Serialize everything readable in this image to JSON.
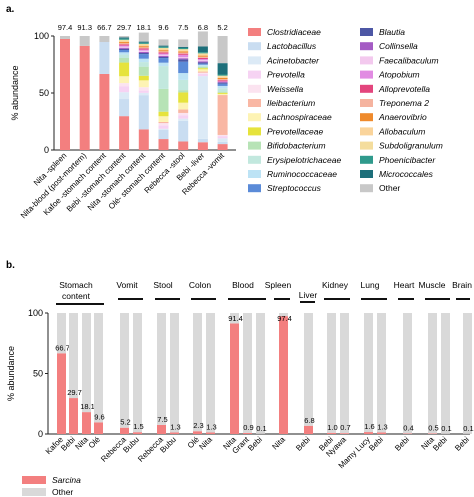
{
  "panel_a_tag": "a.",
  "panel_b_tag": "b.",
  "chart_data": [
    {
      "type": "bar",
      "stacked": true,
      "ylabel": "% abundance",
      "ylim": [
        0,
        100
      ],
      "yticks": [
        0,
        50,
        100
      ],
      "categories": [
        "Nita -spleen",
        "Nita-blood (post-mortem)",
        "Kafoe -stomach content",
        "Bebi -stomach content",
        "Nita -stomach content",
        "Olé- stomach content",
        "Rebecca -stool",
        "Bebi -liver",
        "Rebecca -vomit"
      ],
      "top_labels": [
        "97.4",
        "91.3",
        "66.7",
        "29.7",
        "18.1",
        "9.6",
        "7.5",
        "6.8",
        "5.2"
      ],
      "series": [
        {
          "name": "Clostridiaceae",
          "color": "#f37f7f",
          "values": [
            97.4,
            91.3,
            66.7,
            29.7,
            18.1,
            9.6,
            7.5,
            6.8,
            5.2
          ]
        },
        {
          "name": "Lactobacillus",
          "color": "#c9ddf1",
          "values": [
            0,
            0,
            28,
            15,
            30,
            8,
            18,
            3,
            2
          ]
        },
        {
          "name": "Acinetobacter",
          "color": "#dceaf6",
          "values": [
            0,
            0,
            0,
            6,
            2,
            1,
            2,
            55,
            3
          ]
        },
        {
          "name": "Prevotella",
          "color": "#f6d3f3",
          "values": [
            0,
            0,
            0,
            5,
            2,
            3,
            3,
            2,
            2
          ]
        },
        {
          "name": "Weissella",
          "color": "#fbe3f0",
          "values": [
            0,
            0,
            0,
            3,
            3,
            2,
            2,
            1,
            1
          ]
        },
        {
          "name": "Ileibacterium",
          "color": "#f9b7a4",
          "values": [
            0,
            0,
            0,
            0,
            0,
            1,
            3,
            1,
            35
          ]
        },
        {
          "name": "Lachnospiraceae",
          "color": "#fdf3b4",
          "values": [
            0,
            0,
            0,
            6,
            6,
            5,
            6,
            2,
            1
          ]
        },
        {
          "name": "Prevotellaceae",
          "color": "#e6e33c",
          "values": [
            0,
            0,
            0,
            12,
            4,
            4,
            9,
            1,
            1
          ]
        },
        {
          "name": "Bifidobacterium",
          "color": "#b7e3b6",
          "values": [
            0,
            0,
            0,
            4,
            8,
            20,
            2,
            1,
            1
          ]
        },
        {
          "name": "Erysipelotrichaceae",
          "color": "#c2e8de",
          "values": [
            0,
            0,
            0,
            3,
            4,
            20,
            9,
            1,
            3
          ]
        },
        {
          "name": "Ruminococcaceae",
          "color": "#bde3f5",
          "values": [
            0,
            0,
            0,
            2,
            3,
            3,
            6,
            1,
            2
          ]
        },
        {
          "name": "Streptococcus",
          "color": "#5b8bd8",
          "values": [
            0,
            0,
            0,
            2,
            4,
            4,
            10,
            1,
            2
          ]
        },
        {
          "name": "Blautia",
          "color": "#4d57a5",
          "values": [
            0,
            0,
            0,
            1,
            1,
            1,
            2,
            1,
            1
          ]
        },
        {
          "name": "Collinsella",
          "color": "#a45bc4",
          "values": [
            0,
            0,
            0,
            1,
            1,
            1,
            1,
            1,
            0
          ]
        },
        {
          "name": "Faecalibaculum",
          "color": "#f3c9ee",
          "values": [
            0,
            0,
            0,
            1,
            1,
            1,
            1,
            1,
            0
          ]
        },
        {
          "name": "Atopobium",
          "color": "#e18be2",
          "values": [
            0,
            0,
            0,
            1,
            1,
            1,
            2,
            1,
            1
          ]
        },
        {
          "name": "Alloprevotella",
          "color": "#e3457d",
          "values": [
            0,
            0,
            0,
            1,
            1,
            1,
            1,
            1,
            1
          ]
        },
        {
          "name": "Treponema 2",
          "color": "#f5b39f",
          "values": [
            0,
            0,
            0,
            1,
            1,
            1,
            1,
            1,
            1
          ]
        },
        {
          "name": "Anaerovibrio",
          "color": "#ef8a2c",
          "values": [
            0,
            0,
            0,
            1,
            1,
            1,
            1,
            1,
            1
          ]
        },
        {
          "name": "Allobaculum",
          "color": "#fad49b",
          "values": [
            0,
            0,
            0,
            1,
            1,
            1,
            1,
            1,
            1
          ]
        },
        {
          "name": "Subdoligranulum",
          "color": "#f4dd9d",
          "values": [
            0,
            0,
            0,
            1,
            1,
            1,
            1,
            1,
            1
          ]
        },
        {
          "name": "Phoenicibacter",
          "color": "#2f9a8c",
          "values": [
            0,
            0,
            0,
            1,
            1,
            1,
            1,
            1,
            1
          ]
        },
        {
          "name": "Micrococcales",
          "color": "#1d6f7a",
          "values": [
            0,
            0,
            0,
            1,
            1,
            1,
            1,
            5,
            10
          ]
        },
        {
          "name": "Other",
          "color": "#c8c8c8",
          "values": [
            2.6,
            8.7,
            5.3,
            1.3,
            7.9,
            5.4,
            6.5,
            13.2,
            23.8
          ]
        }
      ]
    },
    {
      "type": "bar",
      "stacked": true,
      "ylabel": "% abundance",
      "ylim": [
        0,
        100
      ],
      "yticks": [
        0,
        50,
        100
      ],
      "groups": [
        "Stomach content",
        "Vomit",
        "Stool",
        "Colon",
        "Blood",
        "Spleen",
        "Liver",
        "Kidney",
        "Lung",
        "Heart",
        "Muscle",
        "Brain"
      ],
      "categories": [
        "Kafoe",
        "Bebi",
        "Nita",
        "Olé",
        "Rebecca",
        "Bubu",
        "Rebecca",
        "Bubu",
        "Olé",
        "Nita",
        "Nita",
        "Grant",
        "Bebi",
        "Nita",
        "Bebi",
        "Bebi",
        "Nyawa",
        "Mamy Lucy",
        "Bebi",
        "Bebi",
        "Nita",
        "Bebi",
        "Bebi"
      ],
      "group_of_category": [
        0,
        0,
        0,
        0,
        1,
        1,
        2,
        2,
        3,
        3,
        4,
        4,
        4,
        5,
        6,
        7,
        7,
        8,
        8,
        9,
        10,
        10,
        11
      ],
      "labels": [
        "66.7",
        "29.7",
        "18.1",
        "9.6",
        "5.2",
        "1.5",
        "7.5",
        "1.3",
        "2.3",
        "1.3",
        "91.4",
        "0.9",
        "0.1",
        "97.4",
        "6.8",
        "1.0",
        "0.7",
        "1.6",
        "1.3",
        "0.4",
        "0.5",
        "0.1",
        "0.1"
      ],
      "series": [
        {
          "name": "Sarcina",
          "color": "#f37f7f",
          "values": [
            66.7,
            29.7,
            18.1,
            9.6,
            5.2,
            1.5,
            7.5,
            1.3,
            2.3,
            1.3,
            91.4,
            0.9,
            0.1,
            97.4,
            6.8,
            1.0,
            0.7,
            1.6,
            1.3,
            0.4,
            0.5,
            0.1,
            0.1
          ]
        },
        {
          "name": "Other",
          "color": "#d9d9d9",
          "values": [
            33.3,
            70.3,
            81.9,
            90.4,
            94.8,
            98.5,
            92.5,
            98.7,
            97.7,
            98.7,
            8.6,
            99.1,
            99.9,
            2.6,
            93.2,
            99.0,
            99.3,
            98.4,
            98.7,
            99.6,
            99.5,
            99.9,
            99.9
          ]
        }
      ]
    }
  ]
}
